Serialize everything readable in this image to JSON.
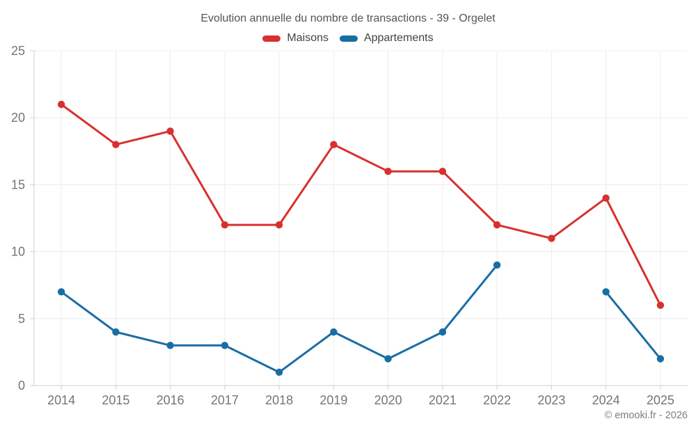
{
  "header": {
    "title": "Evolution annuelle du nombre de transactions - 39 - Orgelet"
  },
  "footer": {
    "copyright": "© emooki.fr - 2026"
  },
  "chart_data": {
    "type": "line",
    "title": "Evolution annuelle du nombre de transactions - 39 - Orgelet",
    "xlabel": "",
    "ylabel": "",
    "categories": [
      "2014",
      "2015",
      "2016",
      "2017",
      "2018",
      "2019",
      "2020",
      "2021",
      "2022",
      "2023",
      "2024",
      "2025"
    ],
    "series": [
      {
        "name": "Maisons",
        "color": "#d7302f",
        "values": [
          21,
          18,
          19,
          12,
          12,
          18,
          16,
          16,
          12,
          11,
          14,
          6
        ]
      },
      {
        "name": "Appartements",
        "color": "#1a6da4",
        "values": [
          7,
          4,
          3,
          3,
          1,
          4,
          2,
          4,
          9,
          null,
          7,
          2
        ]
      }
    ],
    "ylim": [
      0,
      25
    ],
    "yticks": [
      0,
      5,
      10,
      15,
      20,
      25
    ],
    "grid": true,
    "legend_position": "top",
    "colors": {
      "grid": "#ececec",
      "axis": "#cfcfcf",
      "tick_text": "#757575"
    }
  }
}
